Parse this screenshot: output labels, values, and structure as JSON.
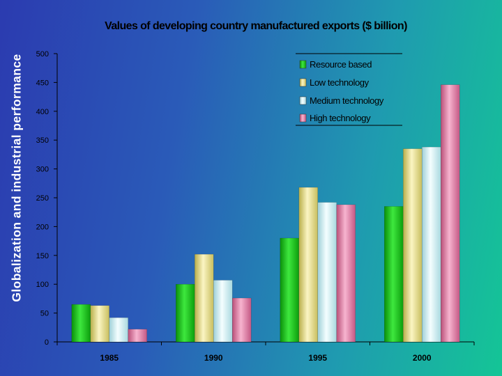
{
  "slide": {
    "side_title": "Globalization and industrial performance"
  },
  "chart_data": {
    "type": "bar",
    "title": "Values of developing country manufactured exports ($ billion)",
    "xlabel": "",
    "ylabel": "",
    "categories": [
      "1985",
      "1990",
      "1995",
      "2000"
    ],
    "ylim": [
      0,
      500
    ],
    "yticks": [
      0,
      50,
      100,
      150,
      200,
      250,
      300,
      350,
      400,
      450,
      500
    ],
    "grid": false,
    "legend_position": "top-right",
    "series": [
      {
        "name": "Resource based",
        "color": "#1ec81e",
        "values": [
          65,
          100,
          180,
          235
        ]
      },
      {
        "name": "Low technology",
        "color": "#ece48c",
        "values": [
          63,
          152,
          268,
          335
        ]
      },
      {
        "name": "Medium technology",
        "color": "#d4f1f6",
        "values": [
          42,
          107,
          242,
          338
        ]
      },
      {
        "name": "High technology",
        "color": "#e57ea6",
        "values": [
          22,
          76,
          238,
          446
        ]
      }
    ]
  }
}
